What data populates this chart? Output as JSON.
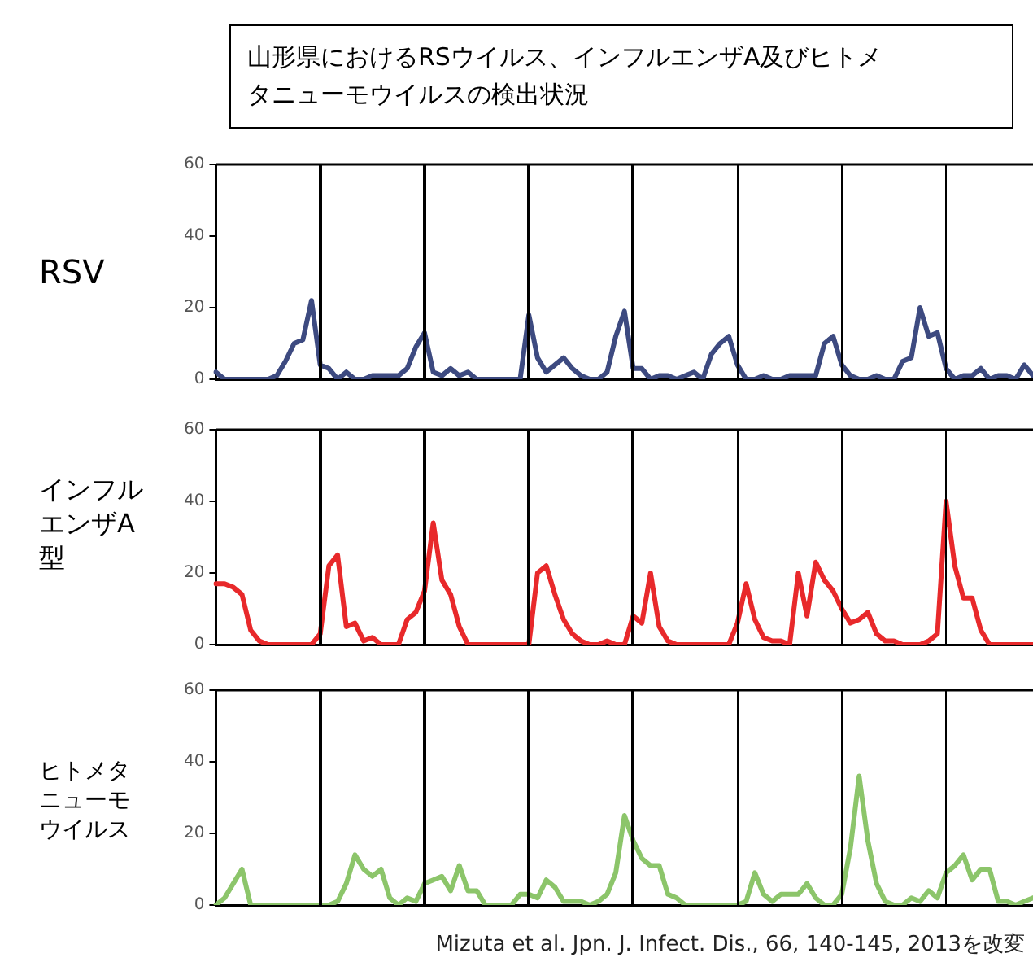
{
  "chart_data": [
    {
      "type": "line",
      "title": "山形県におけるRSウイルス、インフルエンザA及びヒトメタニューモウイルスの検出状況",
      "ylabel": "RSV",
      "categories": [
        null,
        null,
        null,
        null,
        null,
        null,
        null,
        null,
        null,
        null,
        null,
        null,
        null,
        null,
        null,
        null,
        null,
        null,
        null,
        null,
        null,
        null,
        null,
        null,
        null,
        null,
        null,
        null,
        null,
        null,
        null,
        null,
        null,
        null,
        null,
        null,
        null,
        null,
        null,
        null,
        null,
        null,
        null,
        null,
        null,
        null,
        null,
        null,
        null,
        null,
        null,
        null,
        null,
        null,
        null,
        null,
        null,
        null,
        null,
        null,
        null,
        null,
        null,
        null,
        null,
        null,
        null,
        null,
        null,
        null,
        null,
        null,
        null,
        null,
        null,
        null,
        null,
        null,
        null,
        null,
        null,
        null,
        null,
        null,
        null,
        null,
        null,
        null,
        null,
        null,
        null,
        null,
        null,
        null,
        null
      ],
      "series": [
        {
          "color": "#3d4a80",
          "values": [
            2,
            0,
            0,
            0,
            0,
            0,
            0,
            1,
            5,
            10,
            11,
            22,
            4,
            3,
            0,
            2,
            0,
            0,
            1,
            1,
            1,
            1,
            3,
            9,
            13,
            2,
            1,
            3,
            1,
            2,
            0,
            0,
            0,
            0,
            0,
            0,
            18,
            6,
            2,
            4,
            6,
            3,
            1,
            0,
            0,
            2,
            12,
            19,
            3,
            3,
            0,
            1,
            1,
            0,
            1,
            2,
            0,
            7,
            10,
            12,
            4,
            0,
            0,
            1,
            0,
            0,
            1,
            1,
            1,
            1,
            10,
            12,
            4,
            1,
            0,
            0,
            1,
            0,
            0,
            5,
            6,
            20,
            12,
            13,
            3,
            0,
            1,
            1,
            3,
            0,
            1,
            1,
            0,
            4,
            1
          ]
        }
      ],
      "ylim": [
        0,
        60
      ],
      "yticks": [
        0,
        20,
        40,
        60
      ],
      "tick_labels": "y"
    },
    {
      "type": "line",
      "ylabel": "インフルエンザA型",
      "categories": [
        null,
        null,
        null,
        null,
        null,
        null,
        null,
        null,
        null,
        null,
        null,
        null,
        null,
        null,
        null,
        null,
        null,
        null,
        null,
        null,
        null,
        null,
        null,
        null,
        null,
        null,
        null,
        null,
        null,
        null,
        null,
        null,
        null,
        null,
        null,
        null,
        null,
        null,
        null,
        null,
        null,
        null,
        null,
        null,
        null,
        null,
        null,
        null,
        null,
        null,
        null,
        null,
        null,
        null,
        null,
        null,
        null,
        null,
        null,
        null,
        null,
        null,
        null,
        null,
        null,
        null,
        null,
        null,
        null,
        null,
        null,
        null,
        null,
        null,
        null,
        null,
        null,
        null,
        null,
        null,
        null,
        null,
        null,
        null,
        null,
        null,
        null,
        null,
        null,
        null,
        null,
        null,
        null,
        null,
        null
      ],
      "series": [
        {
          "color": "#e8292b",
          "values": [
            17,
            17,
            16,
            14,
            4,
            1,
            0,
            0,
            0,
            0,
            0,
            0,
            3,
            22,
            25,
            5,
            6,
            1,
            2,
            0,
            0,
            0,
            7,
            9,
            15,
            34,
            18,
            14,
            5,
            0,
            0,
            0,
            0,
            0,
            0,
            0,
            0,
            20,
            22,
            14,
            7,
            3,
            1,
            0,
            0,
            1,
            0,
            0,
            8,
            6,
            20,
            5,
            1,
            0,
            0,
            0,
            0,
            0,
            0,
            0,
            6,
            17,
            7,
            2,
            1,
            1,
            0,
            20,
            8,
            23,
            18,
            15,
            10,
            6,
            7,
            9,
            3,
            1,
            1,
            0,
            0,
            0,
            1,
            3,
            40,
            22,
            13,
            13,
            4,
            0,
            0,
            0,
            0,
            0,
            0
          ]
        }
      ],
      "ylim": [
        0,
        60
      ],
      "yticks": [
        0,
        20,
        40,
        60
      ],
      "tick_labels": "y"
    },
    {
      "type": "line",
      "ylabel": "ヒトメタニューモウイルス",
      "annotations": [
        "Mizuta et al. Jpn. J. Infect. Dis., 66, 140-145, 2013を改変"
      ],
      "categories": [
        null,
        null,
        null,
        null,
        null,
        null,
        null,
        null,
        null,
        null,
        null,
        null,
        null,
        null,
        null,
        null,
        null,
        null,
        null,
        null,
        null,
        null,
        null,
        null,
        null,
        null,
        null,
        null,
        null,
        null,
        null,
        null,
        null,
        null,
        null,
        null,
        null,
        null,
        null,
        null,
        null,
        null,
        null,
        null,
        null,
        null,
        null,
        null,
        null,
        null,
        null,
        null,
        null,
        null,
        null,
        null,
        null,
        null,
        null,
        null,
        null,
        null,
        null,
        null,
        null,
        null,
        null,
        null,
        null,
        null,
        null,
        null,
        null,
        null,
        null,
        null,
        null,
        null,
        null,
        null,
        null,
        null,
        null,
        null,
        null,
        null,
        null,
        null,
        null,
        null,
        null,
        null,
        null,
        null,
        null
      ],
      "series": [
        {
          "color": "#8cc56a",
          "values": [
            0,
            2,
            6,
            10,
            0,
            0,
            0,
            0,
            0,
            0,
            0,
            0,
            0,
            0,
            1,
            6,
            14,
            10,
            8,
            10,
            2,
            0,
            2,
            1,
            6,
            7,
            8,
            4,
            11,
            4,
            4,
            0,
            0,
            0,
            0,
            3,
            3,
            2,
            7,
            5,
            1,
            1,
            1,
            0,
            1,
            3,
            9,
            25,
            18,
            13,
            11,
            11,
            3,
            2,
            0,
            0,
            0,
            0,
            0,
            0,
            0,
            1,
            9,
            3,
            1,
            3,
            3,
            3,
            6,
            2,
            0,
            0,
            3,
            16,
            36,
            18,
            6,
            1,
            0,
            0,
            2,
            1,
            4,
            2,
            9,
            11,
            14,
            7,
            10,
            10,
            1,
            1,
            0,
            1,
            2
          ]
        }
      ],
      "ylim": [
        0,
        60
      ],
      "yticks": [
        0,
        20,
        40,
        60
      ],
      "tick_labels": "y"
    }
  ]
}
